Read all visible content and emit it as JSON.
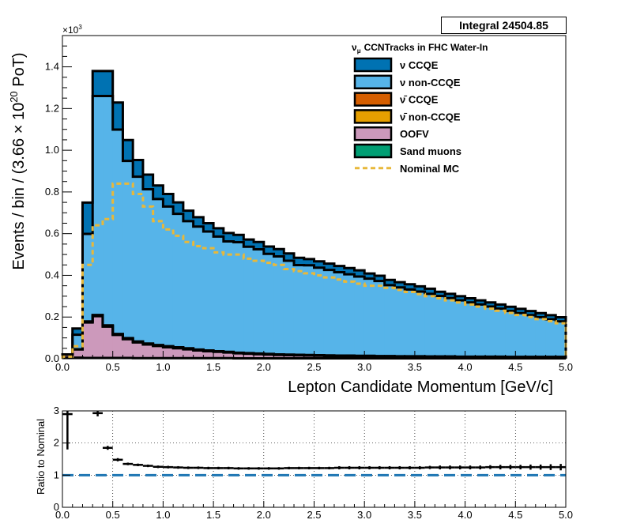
{
  "stats": {
    "label": "Integral",
    "value": "24504.85"
  },
  "chart_data": [
    {
      "type": "area",
      "variant": "stacked-step-histogram",
      "title": "",
      "legend_header": "CCNTracks in FHC Water-In",
      "legend_header_symbol": "ν",
      "legend_header_subscript": "μ",
      "legend_placement": "top-right",
      "xlabel": "Lepton Candidate Momentum [GeV/c]",
      "ylabel": "Events / bin / (3.66  × 10²⁰ PoT)",
      "ylabel_parts": {
        "prefix": "Events / bin / (3.66  × 10",
        "exp": "20",
        "suffix": " PoT)"
      },
      "y_multiplier": "×10³",
      "y_multiplier_parts": {
        "base": "×10",
        "exp": "3"
      },
      "xlim": [
        0.0,
        5.0
      ],
      "ylim": [
        0.0,
        1.55
      ],
      "x_ticks": [
        "0.0",
        "0.5",
        "1.0",
        "1.5",
        "2.0",
        "2.5",
        "3.0",
        "3.5",
        "4.0",
        "4.5",
        "5.0"
      ],
      "y_ticks": [
        "0.0",
        "0.2",
        "0.4",
        "0.6",
        "0.8",
        "1.0",
        "1.2",
        "1.4"
      ],
      "grid": false,
      "bin_edges": [
        0.0,
        0.1,
        0.2,
        0.3,
        0.4,
        0.5,
        0.6,
        0.7,
        0.8,
        0.9,
        1.0,
        1.1,
        1.2,
        1.3,
        1.4,
        1.5,
        1.6,
        1.7,
        1.8,
        1.9,
        2.0,
        2.1,
        2.2,
        2.3,
        2.4,
        2.5,
        2.6,
        2.7,
        2.8,
        2.9,
        3.0,
        3.1,
        3.2,
        3.3,
        3.4,
        3.5,
        3.6,
        3.7,
        3.8,
        3.9,
        4.0,
        4.1,
        4.2,
        4.3,
        4.4,
        4.5,
        4.6,
        4.7,
        4.8,
        4.9,
        5.0
      ],
      "series": [
        {
          "name": "Sand muons",
          "color": "#009e73",
          "values": [
            0.005,
            0.005,
            0.004,
            0.004,
            0.004,
            0.004,
            0.004,
            0.003,
            0.003,
            0.003,
            0.003,
            0.003,
            0.003,
            0.003,
            0.003,
            0.003,
            0.003,
            0.002,
            0.002,
            0.002,
            0.002,
            0.002,
            0.002,
            0.002,
            0.002,
            0.002,
            0.002,
            0.002,
            0.002,
            0.002,
            0.002,
            0.002,
            0.002,
            0.002,
            0.002,
            0.002,
            0.002,
            0.002,
            0.002,
            0.002,
            0.002,
            0.002,
            0.002,
            0.002,
            0.002,
            0.002,
            0.002,
            0.002,
            0.002,
            0.002
          ]
        },
        {
          "name": "OOFV",
          "color": "#cc99bb",
          "values": [
            0.015,
            0.04,
            0.17,
            0.2,
            0.15,
            0.11,
            0.09,
            0.075,
            0.065,
            0.058,
            0.052,
            0.047,
            0.042,
            0.037,
            0.033,
            0.03,
            0.027,
            0.024,
            0.022,
            0.02,
            0.018,
            0.016,
            0.015,
            0.014,
            0.013,
            0.012,
            0.011,
            0.01,
            0.01,
            0.009,
            0.009,
            0.008,
            0.008,
            0.007,
            0.007,
            0.007,
            0.006,
            0.006,
            0.006,
            0.005,
            0.005,
            0.005,
            0.005,
            0.005,
            0.004,
            0.004,
            0.004,
            0.004,
            0.004,
            0.004
          ]
        },
        {
          "name": "ν̄ non-CCQE",
          "color": "#e69f00",
          "values": [
            0,
            0,
            0.003,
            0.004,
            0.004,
            0.003,
            0.003,
            0.003,
            0.003,
            0.003,
            0.003,
            0.003,
            0.003,
            0.003,
            0.003,
            0.002,
            0.002,
            0.002,
            0.002,
            0.002,
            0.002,
            0.002,
            0.002,
            0.002,
            0.002,
            0.002,
            0.002,
            0.002,
            0.002,
            0.002,
            0.002,
            0.002,
            0.002,
            0.002,
            0.002,
            0.002,
            0.002,
            0.002,
            0.002,
            0.002,
            0.002,
            0.002,
            0.002,
            0.002,
            0.002,
            0.002,
            0.002,
            0.002,
            0.002,
            0.002
          ]
        },
        {
          "name": "ν̄ CCQE",
          "color": "#d55e00",
          "values": [
            0,
            0,
            0.002,
            0.002,
            0.002,
            0.002,
            0.002,
            0.002,
            0.002,
            0.002,
            0.002,
            0.002,
            0.002,
            0.001,
            0.001,
            0.001,
            0.001,
            0.001,
            0.001,
            0.001,
            0.001,
            0.001,
            0.001,
            0.001,
            0.001,
            0.001,
            0.001,
            0.001,
            0.001,
            0.001,
            0.001,
            0.001,
            0.001,
            0.001,
            0.001,
            0.001,
            0.001,
            0.001,
            0.001,
            0.001,
            0.001,
            0.001,
            0.001,
            0.001,
            0.001,
            0.001,
            0.001,
            0.001,
            0.001,
            0.001
          ]
        },
        {
          "name": "ν non-CCQE",
          "color": "#56b4e9",
          "values": [
            0.0,
            0.07,
            0.42,
            1.05,
            1.1,
            0.98,
            0.85,
            0.79,
            0.74,
            0.7,
            0.67,
            0.64,
            0.61,
            0.59,
            0.57,
            0.55,
            0.53,
            0.53,
            0.51,
            0.5,
            0.48,
            0.47,
            0.45,
            0.43,
            0.43,
            0.42,
            0.41,
            0.4,
            0.39,
            0.38,
            0.37,
            0.36,
            0.34,
            0.33,
            0.32,
            0.31,
            0.3,
            0.29,
            0.28,
            0.27,
            0.26,
            0.25,
            0.24,
            0.23,
            0.22,
            0.21,
            0.2,
            0.19,
            0.18,
            0.17
          ]
        },
        {
          "name": "ν CCQE",
          "color": "#0072b2",
          "values": [
            0.0,
            0.03,
            0.15,
            0.12,
            0.12,
            0.13,
            0.1,
            0.08,
            0.07,
            0.065,
            0.06,
            0.055,
            0.05,
            0.045,
            0.04,
            0.04,
            0.04,
            0.035,
            0.035,
            0.035,
            0.035,
            0.035,
            0.035,
            0.035,
            0.03,
            0.03,
            0.03,
            0.03,
            0.03,
            0.03,
            0.025,
            0.025,
            0.025,
            0.025,
            0.025,
            0.025,
            0.025,
            0.02,
            0.02,
            0.02,
            0.02,
            0.02,
            0.02,
            0.02,
            0.02,
            0.02,
            0.02,
            0.02,
            0.02,
            0.02
          ]
        }
      ],
      "legend_order": [
        "ν CCQE",
        "ν non-CCQE",
        "ν̄ CCQE",
        "ν̄ non-CCQE",
        "OOFV",
        "Sand muons",
        "Nominal MC"
      ],
      "nominal_mc": {
        "name": "Nominal MC",
        "color": "#e8b83a",
        "style": "dashed",
        "values": [
          0.01,
          0.06,
          0.45,
          0.64,
          0.67,
          0.84,
          0.84,
          0.79,
          0.73,
          0.66,
          0.62,
          0.59,
          0.56,
          0.54,
          0.53,
          0.51,
          0.5,
          0.5,
          0.48,
          0.47,
          0.46,
          0.45,
          0.43,
          0.42,
          0.41,
          0.4,
          0.39,
          0.38,
          0.37,
          0.36,
          0.35,
          0.35,
          0.34,
          0.33,
          0.32,
          0.31,
          0.3,
          0.29,
          0.28,
          0.27,
          0.26,
          0.25,
          0.24,
          0.23,
          0.22,
          0.21,
          0.2,
          0.19,
          0.18,
          0.17
        ]
      }
    },
    {
      "type": "scatter",
      "variant": "ratio-with-error-bars",
      "ylabel": "Ratio to Nominal",
      "xlim": [
        0.0,
        5.0
      ],
      "ylim": [
        0.0,
        3.0
      ],
      "x_ticks": [
        "0.0",
        "0.5",
        "1.0",
        "1.5",
        "2.0",
        "2.5",
        "3.0",
        "3.5",
        "4.0",
        "4.5",
        "5.0"
      ],
      "y_ticks": [
        "0",
        "1",
        "2",
        "3"
      ],
      "grid": true,
      "reference_line": {
        "y": 1.0,
        "color": "#1f77b4",
        "style": "dashed"
      },
      "x": [
        0.05,
        0.15,
        0.25,
        0.35,
        0.45,
        0.55,
        0.65,
        0.75,
        0.85,
        0.95,
        1.05,
        1.15,
        1.25,
        1.35,
        1.45,
        1.55,
        1.65,
        1.75,
        1.85,
        1.95,
        2.05,
        2.15,
        2.25,
        2.35,
        2.45,
        2.55,
        2.65,
        2.75,
        2.85,
        2.95,
        3.05,
        3.15,
        3.25,
        3.35,
        3.45,
        3.55,
        3.65,
        3.75,
        3.85,
        3.95,
        4.05,
        4.15,
        4.25,
        4.35,
        4.45,
        4.55,
        4.65,
        4.75,
        4.85,
        4.95
      ],
      "y": [
        2.9,
        null,
        null,
        2.93,
        1.85,
        1.48,
        1.35,
        1.32,
        1.29,
        1.26,
        1.25,
        1.24,
        1.23,
        1.23,
        1.22,
        1.22,
        1.22,
        1.21,
        1.21,
        1.21,
        1.21,
        1.21,
        1.22,
        1.22,
        1.22,
        1.22,
        1.22,
        1.23,
        1.23,
        1.23,
        1.23,
        1.23,
        1.23,
        1.23,
        1.23,
        1.23,
        1.24,
        1.24,
        1.24,
        1.24,
        1.24,
        1.24,
        1.25,
        1.25,
        1.25,
        1.25,
        1.25,
        1.25,
        1.25,
        1.25
      ],
      "yerr": [
        0.3,
        0,
        0,
        0.1,
        0.06,
        0.05,
        0.04,
        0.04,
        0.04,
        0.04,
        0.04,
        0.04,
        0.04,
        0.04,
        0.04,
        0.04,
        0.04,
        0.04,
        0.04,
        0.04,
        0.04,
        0.04,
        0.04,
        0.04,
        0.04,
        0.04,
        0.04,
        0.05,
        0.05,
        0.05,
        0.05,
        0.05,
        0.05,
        0.05,
        0.05,
        0.05,
        0.05,
        0.06,
        0.06,
        0.06,
        0.06,
        0.06,
        0.06,
        0.07,
        0.07,
        0.07,
        0.08,
        0.08,
        0.09,
        0.1
      ]
    }
  ]
}
